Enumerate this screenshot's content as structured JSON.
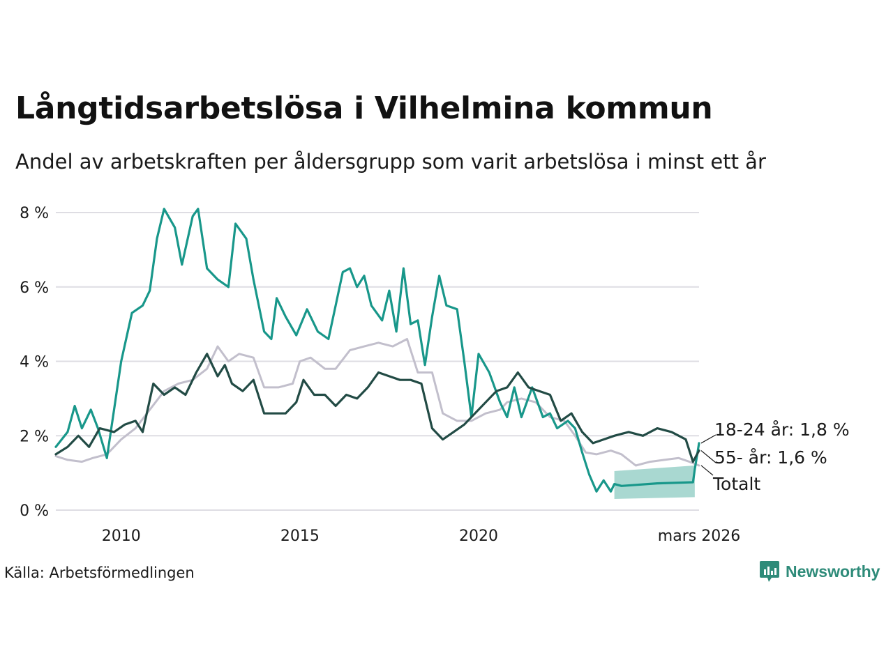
{
  "chart_data": {
    "type": "line",
    "title": "Långtidsarbetslösa i Vilhelmina kommun",
    "subtitle": "Andel av arbetskraften per åldersgrupp som varit arbetslösa i minst ett år",
    "source": "Källa: Arbetsförmedlingen",
    "brand": "Newsworthy",
    "x_range": [
      2008.17,
      2026.17
    ],
    "ylim": [
      0,
      8.5
    ],
    "y_ticks": [
      {
        "value": 0,
        "label": "0 %"
      },
      {
        "value": 2,
        "label": "2 %"
      },
      {
        "value": 4,
        "label": "4 %"
      },
      {
        "value": 6,
        "label": "6 %"
      },
      {
        "value": 8,
        "label": "8 %"
      }
    ],
    "x_ticks": [
      {
        "value": 2010,
        "label": "2010"
      },
      {
        "value": 2015,
        "label": "2015"
      },
      {
        "value": 2020,
        "label": "2020"
      },
      {
        "value": 2026.17,
        "label": "mars 2026"
      }
    ],
    "series": [
      {
        "name": "Totalt",
        "end_label": "Totalt",
        "color": "#c2bfcc",
        "points": [
          [
            2008.17,
            1.45
          ],
          [
            2008.5,
            1.35
          ],
          [
            2008.9,
            1.3
          ],
          [
            2009.2,
            1.4
          ],
          [
            2009.6,
            1.5
          ],
          [
            2010.0,
            1.9
          ],
          [
            2010.4,
            2.2
          ],
          [
            2010.8,
            2.7
          ],
          [
            2011.2,
            3.2
          ],
          [
            2011.6,
            3.4
          ],
          [
            2012.0,
            3.5
          ],
          [
            2012.4,
            3.8
          ],
          [
            2012.7,
            4.4
          ],
          [
            2013.0,
            4.0
          ],
          [
            2013.3,
            4.2
          ],
          [
            2013.7,
            4.1
          ],
          [
            2014.0,
            3.3
          ],
          [
            2014.4,
            3.3
          ],
          [
            2014.8,
            3.4
          ],
          [
            2015.0,
            4.0
          ],
          [
            2015.3,
            4.1
          ],
          [
            2015.7,
            3.8
          ],
          [
            2016.0,
            3.8
          ],
          [
            2016.4,
            4.3
          ],
          [
            2016.8,
            4.4
          ],
          [
            2017.2,
            4.5
          ],
          [
            2017.6,
            4.4
          ],
          [
            2018.0,
            4.6
          ],
          [
            2018.3,
            3.7
          ],
          [
            2018.7,
            3.7
          ],
          [
            2019.0,
            2.6
          ],
          [
            2019.4,
            2.4
          ],
          [
            2019.8,
            2.4
          ],
          [
            2020.2,
            2.6
          ],
          [
            2020.6,
            2.7
          ],
          [
            2020.8,
            2.9
          ],
          [
            2021.2,
            3.0
          ],
          [
            2021.6,
            2.9
          ],
          [
            2022.0,
            2.5
          ],
          [
            2022.4,
            2.4
          ],
          [
            2022.7,
            2.0
          ],
          [
            2023.0,
            1.55
          ],
          [
            2023.3,
            1.5
          ],
          [
            2023.7,
            1.6
          ],
          [
            2024.0,
            1.5
          ],
          [
            2024.4,
            1.2
          ],
          [
            2024.8,
            1.3
          ],
          [
            2025.2,
            1.35
          ],
          [
            2025.6,
            1.4
          ],
          [
            2025.9,
            1.3
          ],
          [
            2026.17,
            1.2
          ]
        ]
      },
      {
        "name": "18-24 år",
        "end_label": "18-24 år: 1,8 %",
        "color": "#18978a",
        "points": [
          [
            2008.17,
            1.7
          ],
          [
            2008.5,
            2.1
          ],
          [
            2008.7,
            2.8
          ],
          [
            2008.9,
            2.2
          ],
          [
            2009.15,
            2.7
          ],
          [
            2009.35,
            2.2
          ],
          [
            2009.6,
            1.4
          ],
          [
            2009.8,
            2.7
          ],
          [
            2010.0,
            4.0
          ],
          [
            2010.3,
            5.3
          ],
          [
            2010.6,
            5.5
          ],
          [
            2010.8,
            5.9
          ],
          [
            2011.0,
            7.3
          ],
          [
            2011.2,
            8.1
          ],
          [
            2011.5,
            7.6
          ],
          [
            2011.7,
            6.6
          ],
          [
            2012.0,
            7.9
          ],
          [
            2012.15,
            8.1
          ],
          [
            2012.4,
            6.5
          ],
          [
            2012.7,
            6.2
          ],
          [
            2013.0,
            6.0
          ],
          [
            2013.2,
            7.7
          ],
          [
            2013.5,
            7.3
          ],
          [
            2013.7,
            6.2
          ],
          [
            2014.0,
            4.8
          ],
          [
            2014.2,
            4.6
          ],
          [
            2014.35,
            5.7
          ],
          [
            2014.6,
            5.2
          ],
          [
            2014.9,
            4.7
          ],
          [
            2015.2,
            5.4
          ],
          [
            2015.5,
            4.8
          ],
          [
            2015.8,
            4.6
          ],
          [
            2016.0,
            5.5
          ],
          [
            2016.2,
            6.4
          ],
          [
            2016.4,
            6.5
          ],
          [
            2016.6,
            6.0
          ],
          [
            2016.8,
            6.3
          ],
          [
            2017.0,
            5.5
          ],
          [
            2017.3,
            5.1
          ],
          [
            2017.5,
            5.9
          ],
          [
            2017.7,
            4.8
          ],
          [
            2017.9,
            6.5
          ],
          [
            2018.1,
            5.0
          ],
          [
            2018.3,
            5.1
          ],
          [
            2018.5,
            3.9
          ],
          [
            2018.7,
            5.2
          ],
          [
            2018.9,
            6.3
          ],
          [
            2019.1,
            5.5
          ],
          [
            2019.4,
            5.4
          ],
          [
            2019.6,
            4.0
          ],
          [
            2019.8,
            2.5
          ],
          [
            2020.0,
            4.2
          ],
          [
            2020.3,
            3.7
          ],
          [
            2020.6,
            2.9
          ],
          [
            2020.8,
            2.5
          ],
          [
            2021.0,
            3.3
          ],
          [
            2021.2,
            2.5
          ],
          [
            2021.5,
            3.3
          ],
          [
            2021.8,
            2.5
          ],
          [
            2022.0,
            2.6
          ],
          [
            2022.2,
            2.2
          ],
          [
            2022.5,
            2.4
          ],
          [
            2022.7,
            2.2
          ],
          [
            2022.9,
            1.55
          ],
          [
            2023.1,
            0.95
          ],
          [
            2023.3,
            0.5
          ],
          [
            2023.5,
            0.8
          ],
          [
            2023.7,
            0.5
          ],
          [
            2023.8,
            0.7
          ],
          [
            2024.0,
            0.65
          ],
          [
            2025.0,
            0.72
          ],
          [
            2026.0,
            0.75
          ],
          [
            2026.05,
            1.1
          ],
          [
            2026.17,
            1.8
          ]
        ]
      },
      {
        "name": "55- år",
        "end_label": "55- år: 1,6 %",
        "color": "#224b45",
        "points": [
          [
            2008.17,
            1.5
          ],
          [
            2008.5,
            1.7
          ],
          [
            2008.8,
            2.0
          ],
          [
            2009.1,
            1.7
          ],
          [
            2009.4,
            2.2
          ],
          [
            2009.8,
            2.1
          ],
          [
            2010.1,
            2.3
          ],
          [
            2010.4,
            2.4
          ],
          [
            2010.6,
            2.1
          ],
          [
            2010.9,
            3.4
          ],
          [
            2011.2,
            3.1
          ],
          [
            2011.5,
            3.3
          ],
          [
            2011.8,
            3.1
          ],
          [
            2012.1,
            3.7
          ],
          [
            2012.4,
            4.2
          ],
          [
            2012.7,
            3.6
          ],
          [
            2012.9,
            3.9
          ],
          [
            2013.1,
            3.4
          ],
          [
            2013.4,
            3.2
          ],
          [
            2013.7,
            3.5
          ],
          [
            2014.0,
            2.6
          ],
          [
            2014.3,
            2.6
          ],
          [
            2014.6,
            2.6
          ],
          [
            2014.9,
            2.9
          ],
          [
            2015.1,
            3.5
          ],
          [
            2015.4,
            3.1
          ],
          [
            2015.7,
            3.1
          ],
          [
            2016.0,
            2.8
          ],
          [
            2016.3,
            3.1
          ],
          [
            2016.6,
            3.0
          ],
          [
            2016.9,
            3.3
          ],
          [
            2017.2,
            3.7
          ],
          [
            2017.5,
            3.6
          ],
          [
            2017.8,
            3.5
          ],
          [
            2018.1,
            3.5
          ],
          [
            2018.4,
            3.4
          ],
          [
            2018.7,
            2.2
          ],
          [
            2019.0,
            1.9
          ],
          [
            2019.3,
            2.1
          ],
          [
            2019.6,
            2.3
          ],
          [
            2019.9,
            2.6
          ],
          [
            2020.2,
            2.9
          ],
          [
            2020.5,
            3.2
          ],
          [
            2020.8,
            3.3
          ],
          [
            2021.1,
            3.7
          ],
          [
            2021.4,
            3.3
          ],
          [
            2021.7,
            3.2
          ],
          [
            2022.0,
            3.1
          ],
          [
            2022.3,
            2.4
          ],
          [
            2022.6,
            2.6
          ],
          [
            2022.9,
            2.1
          ],
          [
            2023.2,
            1.8
          ],
          [
            2023.5,
            1.9
          ],
          [
            2023.8,
            2.0
          ],
          [
            2024.2,
            2.1
          ],
          [
            2024.6,
            2.0
          ],
          [
            2025.0,
            2.2
          ],
          [
            2025.4,
            2.1
          ],
          [
            2025.8,
            1.9
          ],
          [
            2026.0,
            1.3
          ],
          [
            2026.17,
            1.6
          ]
        ]
      }
    ],
    "forecast_band": {
      "series": "18-24 år",
      "color": "#a9d8d1",
      "x_range": [
        2023.8,
        2026.05
      ],
      "lower": [
        0.3,
        0.35
      ],
      "upper": [
        1.05,
        1.2
      ]
    }
  }
}
